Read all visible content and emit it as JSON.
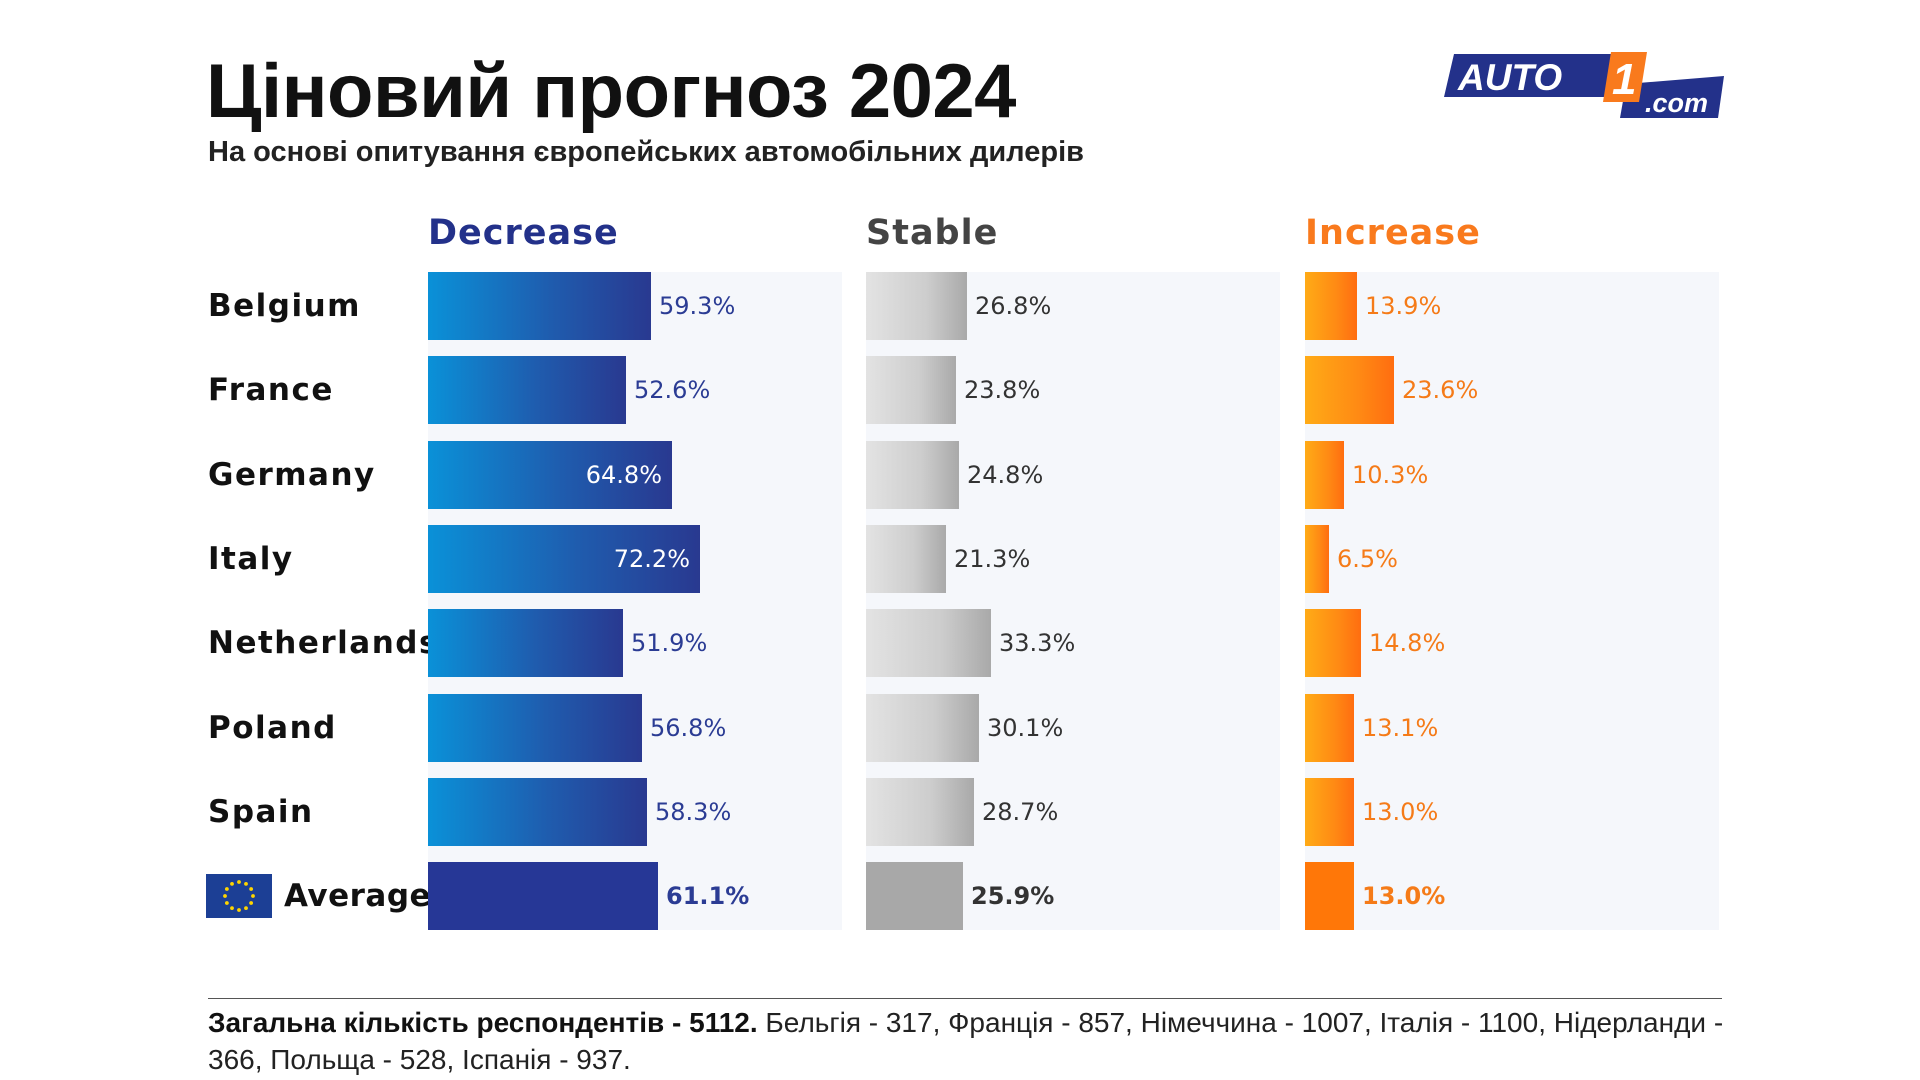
{
  "header": {
    "title": "Ціновий прогноз 2024",
    "subtitle": "На основі опитування європейських автомобільних дилерів",
    "logo_main": "AUTO",
    "logo_digit": "1",
    "logo_suffix": ".com",
    "logo_colors": {
      "primary": "#23318a",
      "accent": "#f97a1d",
      "text": "#ffffff"
    }
  },
  "colors": {
    "decrease": "#23318a",
    "stable": "#444444",
    "increase": "#f97a1d",
    "panel_background": "#f5f7fb"
  },
  "chart_data": {
    "type": "bar",
    "orientation": "horizontal",
    "grid": false,
    "categories": [
      "Belgium",
      "France",
      "Germany",
      "Italy",
      "Netherlands",
      "Poland",
      "Spain",
      "Average"
    ],
    "series": [
      {
        "name": "Decrease",
        "values": [
          59.3,
          52.6,
          64.8,
          72.2,
          51.9,
          56.8,
          58.3,
          61.1
        ]
      },
      {
        "name": "Stable",
        "values": [
          26.8,
          23.8,
          24.8,
          21.3,
          33.3,
          30.1,
          28.7,
          25.9
        ]
      },
      {
        "name": "Increase",
        "values": [
          13.9,
          23.6,
          10.3,
          6.5,
          14.8,
          13.1,
          13.0,
          13.0
        ]
      }
    ],
    "value_labels": [
      [
        "59.3%",
        "52.6%",
        "64.8%",
        "72.2%",
        "51.9%",
        "56.8%",
        "58.3%",
        "61.1%"
      ],
      [
        "26.8%",
        "23.8%",
        "24.8%",
        "21.3%",
        "33.3%",
        "30.1%",
        "28.7%",
        "25.9%"
      ],
      [
        "13.9%",
        "23.6%",
        "10.3%",
        "6.5%",
        "14.8%",
        "13.1%",
        "13.0%",
        "13.0%"
      ]
    ],
    "unit": "%",
    "xlim": [
      0,
      100
    ]
  },
  "footer": {
    "total_label": "Загальна кількість респондентів - 5112.",
    "breakdown": " Бельгія - 317, Франція - 857, Німеччина - 1007, Італія - 1100, Нідерланди - 366, Польща - 528, Іспанія - 937."
  }
}
